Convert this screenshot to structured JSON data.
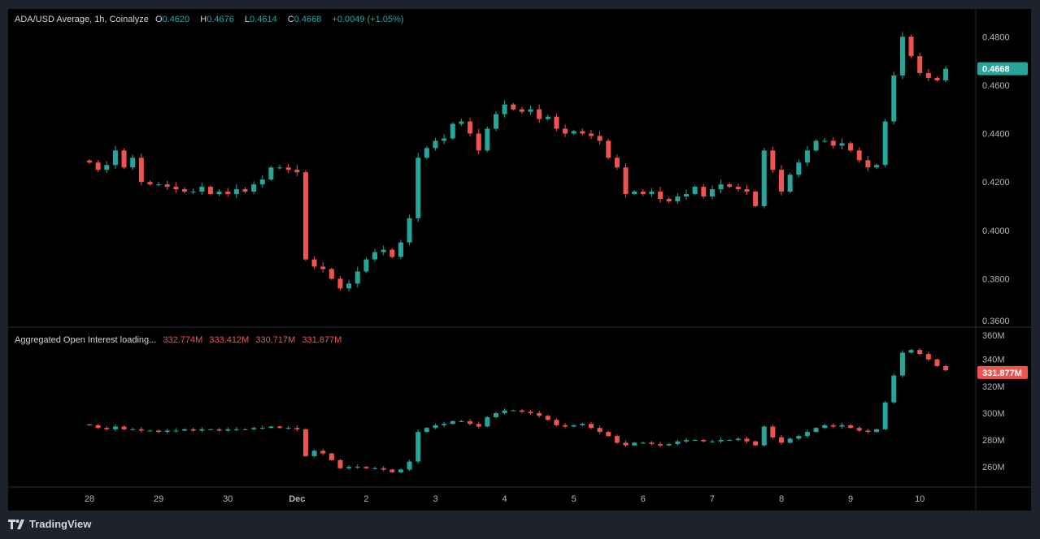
{
  "header": {
    "symbol": "ADA/USD Average, 1h, Coinalyze",
    "o_label": "O",
    "o": "0.4620",
    "h_label": "H",
    "h": "0.4676",
    "l_label": "L",
    "l": "0.4614",
    "c_label": "C",
    "c": "0.4668",
    "change": "+0.0049 (+1.05%)"
  },
  "oi_header": {
    "title": "Aggregated Open Interest loading...",
    "o": "332.774M",
    "h": "333.412M",
    "l": "330.717M",
    "c": "331.877M"
  },
  "colors": {
    "up": "#26a69a",
    "down": "#ef5350",
    "background": "#000000",
    "frame": "#1e222d"
  },
  "footer": {
    "brand": "TradingView",
    "icon": "tradingview-logo-icon"
  },
  "chart_data": [
    {
      "type": "candlestick",
      "series_name": "ADA/USD Average",
      "start": "Nov 28 00:00",
      "interval_hours": 3,
      "last_price_label": "0.4668",
      "yticks": [
        "0.4800",
        "0.4600",
        "0.4400",
        "0.4200",
        "0.4000",
        "0.3800",
        "0.3600"
      ],
      "ylim": [
        0.36,
        0.4915
      ],
      "closes": [
        0.428,
        0.425,
        0.427,
        0.433,
        0.426,
        0.43,
        0.42,
        0.419,
        0.419,
        0.418,
        0.417,
        0.416,
        0.416,
        0.418,
        0.415,
        0.416,
        0.415,
        0.417,
        0.416,
        0.419,
        0.421,
        0.426,
        0.426,
        0.425,
        0.424,
        0.388,
        0.385,
        0.384,
        0.38,
        0.376,
        0.378,
        0.383,
        0.388,
        0.391,
        0.392,
        0.389,
        0.395,
        0.405,
        0.43,
        0.434,
        0.437,
        0.438,
        0.444,
        0.445,
        0.44,
        0.433,
        0.442,
        0.448,
        0.452,
        0.45,
        0.449,
        0.45,
        0.446,
        0.447,
        0.442,
        0.44,
        0.441,
        0.44,
        0.439,
        0.437,
        0.43,
        0.426,
        0.415,
        0.416,
        0.415,
        0.416,
        0.413,
        0.412,
        0.414,
        0.415,
        0.418,
        0.414,
        0.417,
        0.419,
        0.418,
        0.417,
        0.416,
        0.41,
        0.433,
        0.425,
        0.416,
        0.423,
        0.428,
        0.433,
        0.437,
        0.437,
        0.435,
        0.436,
        0.433,
        0.429,
        0.426,
        0.427,
        0.445,
        0.464,
        0.48,
        0.472,
        0.465,
        0.463,
        0.462,
        0.4668
      ]
    },
    {
      "type": "candlestick",
      "series_name": "Aggregated Open Interest",
      "unit": "M",
      "start": "Nov 28 00:00",
      "interval_hours": 3,
      "last_value_label": "331.877M",
      "yticks": [
        "360M",
        "340M",
        "320M",
        "300M",
        "280M",
        "260M"
      ],
      "ylim": [
        245,
        364
      ],
      "closes": [
        291,
        289,
        288,
        290,
        288,
        288,
        287,
        287,
        286,
        287,
        287,
        288,
        287,
        288,
        288,
        287,
        288,
        288,
        288,
        289,
        289,
        290,
        289,
        289,
        288,
        268,
        272,
        270,
        265,
        259,
        260,
        260,
        259,
        259,
        258,
        256,
        258,
        264,
        286,
        289,
        291,
        292,
        294,
        294,
        292,
        290,
        297,
        300,
        302,
        302,
        301,
        300,
        298,
        295,
        291,
        290,
        291,
        292,
        289,
        286,
        283,
        278,
        276,
        278,
        278,
        277,
        276,
        277,
        279,
        280,
        280,
        279,
        279,
        280,
        280,
        281,
        279,
        276,
        290,
        282,
        278,
        281,
        283,
        286,
        289,
        291,
        290,
        291,
        289,
        287,
        286,
        288,
        308,
        328,
        345,
        347,
        344,
        340,
        335,
        331.877
      ]
    }
  ],
  "xaxis": {
    "ticks": [
      "28",
      "29",
      "30",
      "Dec",
      "2",
      "3",
      "4",
      "5",
      "6",
      "7",
      "8",
      "9",
      "10"
    ]
  }
}
